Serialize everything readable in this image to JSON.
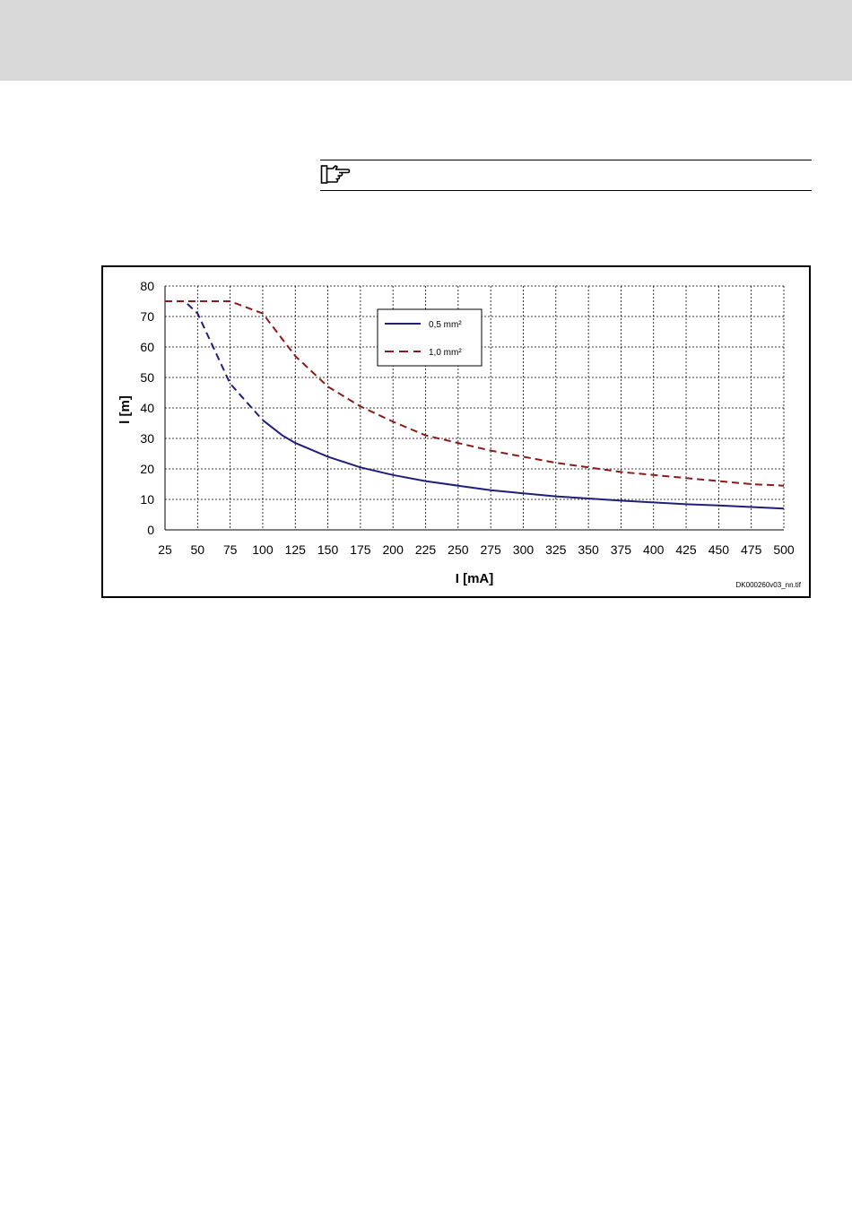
{
  "page": {
    "note_icon": "pointing-hand-icon",
    "header_color": "#d9d9d9"
  },
  "chart_data": {
    "type": "line",
    "title": "",
    "xlabel": "I [mA]",
    "ylabel": "l [m]",
    "xlim": [
      25,
      500
    ],
    "ylim": [
      0,
      80
    ],
    "x_ticks": [
      25,
      50,
      75,
      100,
      125,
      150,
      175,
      200,
      225,
      250,
      275,
      300,
      325,
      350,
      375,
      400,
      425,
      450,
      475,
      500
    ],
    "y_ticks": [
      0,
      10,
      20,
      30,
      40,
      50,
      60,
      70,
      80
    ],
    "grid": true,
    "legend_position": "top-center",
    "series": [
      {
        "name": "0,5 mm²",
        "color": "#1f1f7a",
        "style": "solid",
        "dashed_until_x": 100,
        "x": [
          25,
          40,
          50,
          75,
          100,
          115,
          125,
          150,
          175,
          200,
          225,
          250,
          275,
          300,
          325,
          350,
          375,
          400,
          425,
          450,
          475,
          500
        ],
        "y": [
          75,
          75,
          71,
          48,
          36,
          31,
          28.5,
          24,
          20.5,
          18,
          16,
          14.5,
          13,
          12,
          11,
          10.3,
          9.6,
          9,
          8.4,
          8,
          7.5,
          7
        ]
      },
      {
        "name": "1,0 mm²",
        "color": "#8b1a1a",
        "style": "dashed",
        "x": [
          25,
          50,
          75,
          100,
          125,
          150,
          175,
          200,
          225,
          250,
          275,
          300,
          325,
          350,
          375,
          400,
          425,
          450,
          475,
          500
        ],
        "y": [
          75,
          75,
          75,
          71,
          57,
          47,
          40.5,
          35.5,
          31,
          28.5,
          26,
          24,
          22,
          20.5,
          19,
          18,
          17,
          16,
          15,
          14.5
        ]
      }
    ],
    "reference": "DK000260v03_nn.tif"
  }
}
